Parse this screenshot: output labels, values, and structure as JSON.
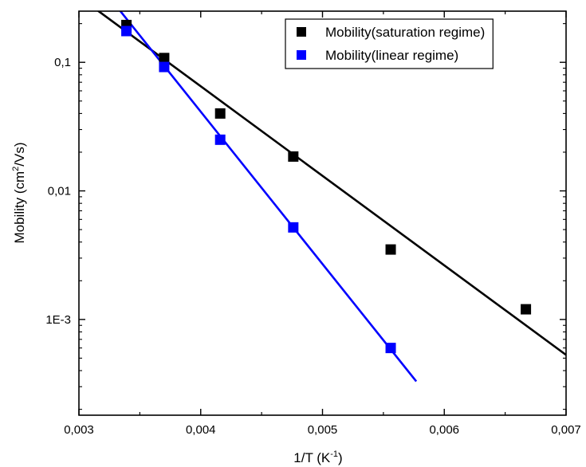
{
  "chart_data": {
    "type": "scatter",
    "title": "",
    "xlabel": {
      "main": "1/T (K",
      "sup": "-1",
      "tail": ")"
    },
    "ylabel": {
      "main": "Mobility (cm",
      "sup": "2",
      "tail": "/Vs)"
    },
    "xlim": [
      0.003,
      0.007
    ],
    "ylim": [
      0.00018,
      0.25
    ],
    "yscale": "log",
    "grid": false,
    "legend_position": "top-right",
    "x_ticks": [
      {
        "value": 0.003,
        "label": "0,003"
      },
      {
        "value": 0.004,
        "label": "0,004"
      },
      {
        "value": 0.005,
        "label": "0,005"
      },
      {
        "value": 0.006,
        "label": "0,006"
      },
      {
        "value": 0.007,
        "label": "0,007"
      }
    ],
    "y_ticks": [
      {
        "value": 0.1,
        "label": "0,1"
      },
      {
        "value": 0.01,
        "label": "0,01"
      },
      {
        "value": 0.001,
        "label": "1E-3"
      }
    ],
    "series": [
      {
        "name": "Mobility(saturation regime)",
        "color": "#000000",
        "marker": "square",
        "x": [
          0.00339,
          0.0037,
          0.00416,
          0.00476,
          0.00556,
          0.00667
        ],
        "y": [
          0.195,
          0.108,
          0.04,
          0.0185,
          0.0035,
          0.0012
        ],
        "fit": {
          "x": [
            0.0029,
            0.007
          ],
          "y": [
            0.38,
            0.00053
          ]
        }
      },
      {
        "name": "Mobility(linear regime)",
        "color": "#0000ff",
        "marker": "square",
        "x": [
          0.00339,
          0.0037,
          0.00416,
          0.00476,
          0.00556
        ],
        "y": [
          0.175,
          0.092,
          0.025,
          0.0052,
          0.0006
        ],
        "fit": {
          "x": [
            0.00325,
            0.00577
          ],
          "y": [
            0.32,
            0.00033
          ]
        }
      }
    ]
  }
}
